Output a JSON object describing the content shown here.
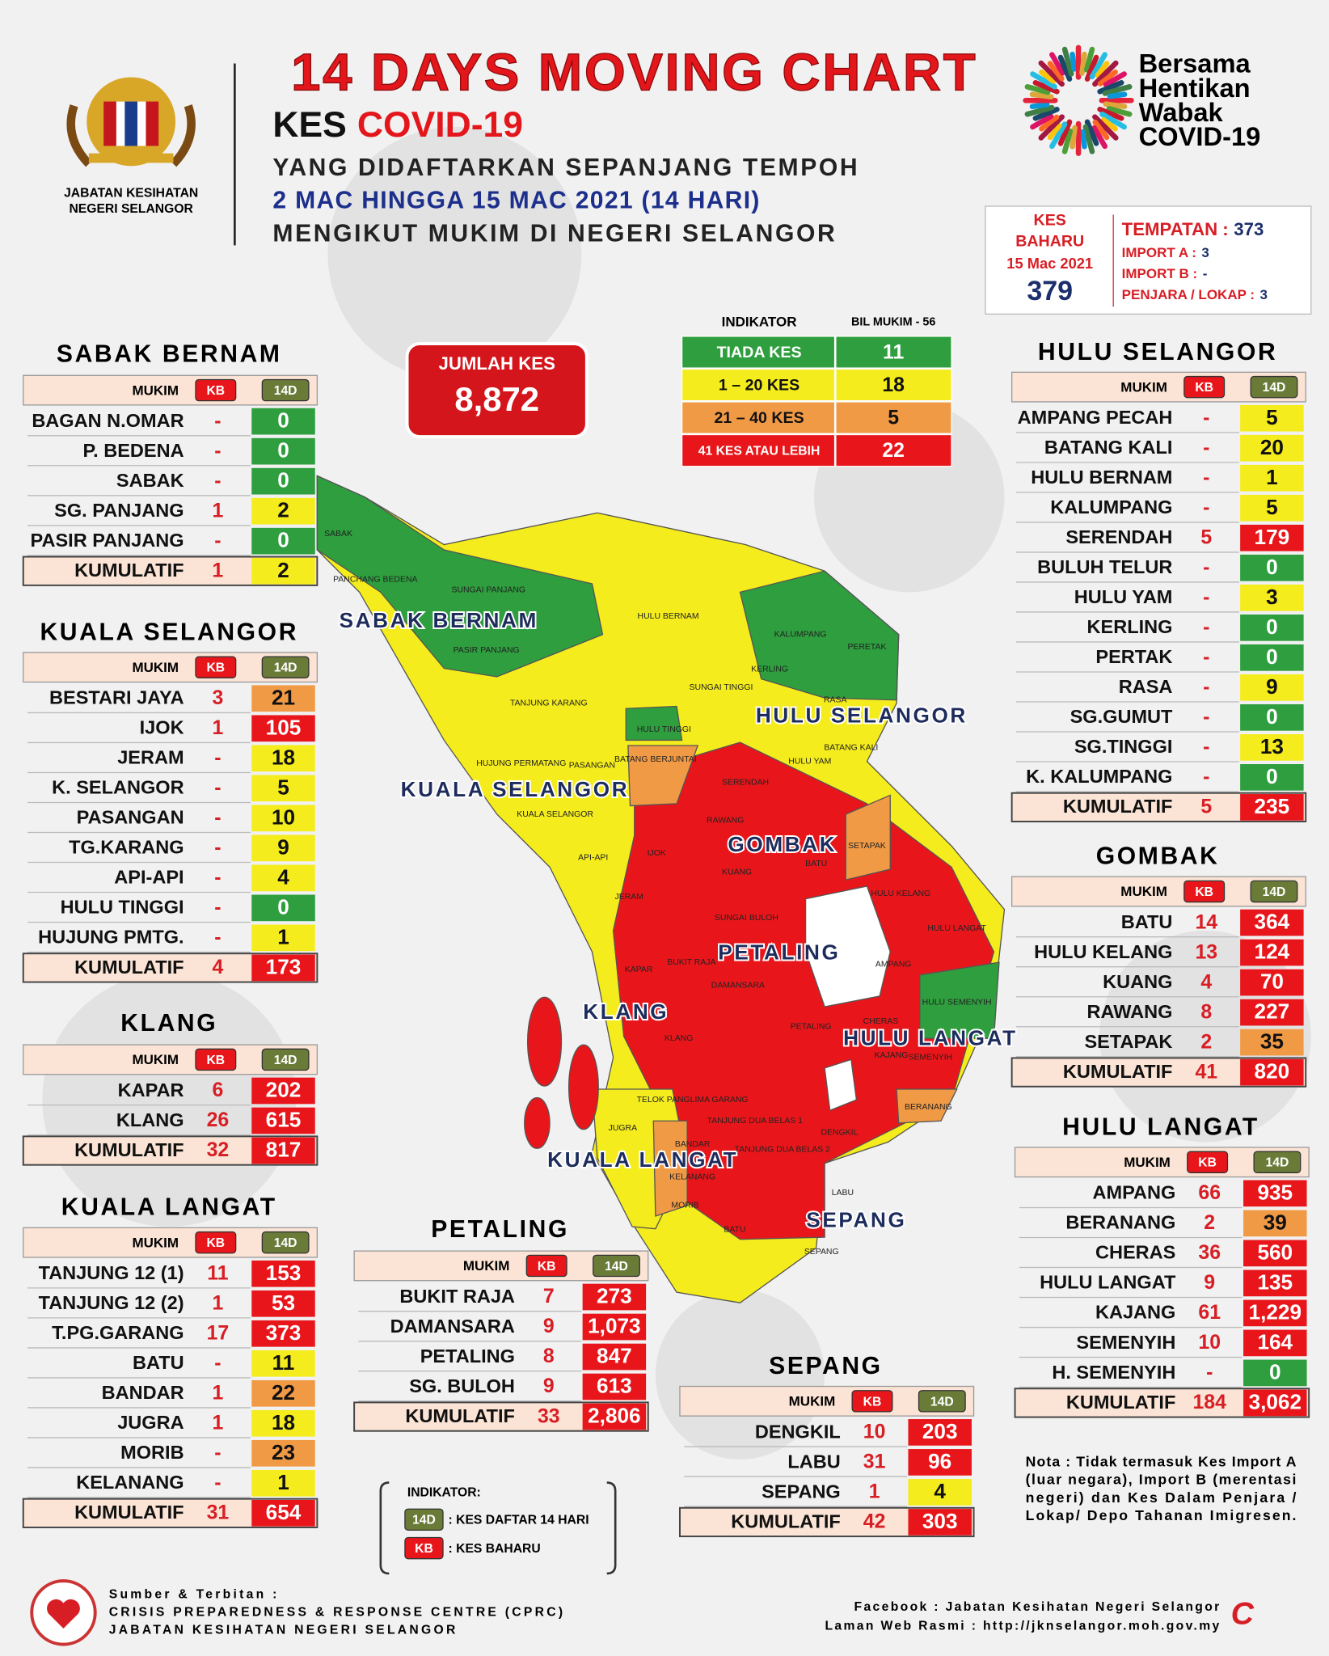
{
  "header": {
    "agency": "JABATAN KESIHATAN NEGERI SELANGOR",
    "agency_lines": [
      "JABATAN KESIHATAN",
      "NEGERI SELANGOR"
    ],
    "title": "14 DAYS MOVING CHART",
    "subtitle_prefix": "KES",
    "subtitle_highlight": "COVID-19",
    "lines": [
      "YANG DIDAFTARKAN SEPANJANG TEMPOH",
      "2 MAC HINGGA 15 MAC 2021 (14 HARI)",
      "MENGIKUT MUKIM DI NEGERI SELANGOR"
    ],
    "campaign": [
      "Bersama",
      "Hentikan",
      "Wabak",
      "COVID-19"
    ]
  },
  "new_cases": {
    "label_lines": [
      "KES",
      "BAHARU"
    ],
    "date": "15 Mac 2021",
    "total": 379,
    "items": [
      {
        "label": "TEMPATAN :",
        "value": 373
      },
      {
        "label": "IMPORT A :",
        "value": 3
      },
      {
        "label": "IMPORT B :",
        "value": "-"
      },
      {
        "label": "PENJARA / LOKAP :",
        "value": 3
      }
    ]
  },
  "total_cases": {
    "label": "JUMLAH KES",
    "value": "8,872"
  },
  "indicator": {
    "headers": [
      "INDIKATOR",
      "BIL MUKIM - 56"
    ],
    "rows": [
      {
        "label": "TIADA KES",
        "count": 11,
        "color": "#2e9e3e"
      },
      {
        "label": "1 – 20 KES",
        "count": 18,
        "color": "#f4ec1c"
      },
      {
        "label": "21 – 40 KES",
        "count": 5,
        "color": "#f19a46"
      },
      {
        "label": "41 KES ATAU LEBIH",
        "count": 22,
        "color": "#e8161b"
      }
    ]
  },
  "table_headers": [
    "MUKIM",
    "KB",
    "14D"
  ],
  "districts": [
    {
      "name": "SABAK BERNAM",
      "rows": [
        [
          "BAGAN N.OMAR",
          "-",
          0
        ],
        [
          "P. BEDENA",
          "-",
          0
        ],
        [
          "SABAK",
          "-",
          0
        ],
        [
          "SG. PANJANG",
          1,
          2
        ],
        [
          "PASIR PANJANG",
          "-",
          0
        ]
      ],
      "total": [
        "KUMULATIF",
        1,
        2
      ]
    },
    {
      "name": "KUALA SELANGOR",
      "rows": [
        [
          "BESTARI JAYA",
          3,
          21
        ],
        [
          "IJOK",
          1,
          105
        ],
        [
          "JERAM",
          "-",
          18
        ],
        [
          "K. SELANGOR",
          "-",
          5
        ],
        [
          "PASANGAN",
          "-",
          10
        ],
        [
          "TG.KARANG",
          "-",
          9
        ],
        [
          "API-API",
          "-",
          4
        ],
        [
          "HULU TINGGI",
          "-",
          0
        ],
        [
          "HUJUNG PMTG.",
          "-",
          1
        ]
      ],
      "total": [
        "KUMULATIF",
        4,
        173
      ]
    },
    {
      "name": "KLANG",
      "rows": [
        [
          "KAPAR",
          6,
          202
        ],
        [
          "KLANG",
          26,
          615
        ]
      ],
      "total": [
        "KUMULATIF",
        32,
        817
      ]
    },
    {
      "name": "KUALA LANGAT",
      "rows": [
        [
          "TANJUNG 12 (1)",
          11,
          153
        ],
        [
          "TANJUNG 12 (2)",
          1,
          53
        ],
        [
          "T.PG.GARANG",
          17,
          373
        ],
        [
          "BATU",
          "-",
          11
        ],
        [
          "BANDAR",
          1,
          22
        ],
        [
          "JUGRA",
          1,
          18
        ],
        [
          "MORIB",
          "-",
          23
        ],
        [
          "KELANANG",
          "-",
          1
        ]
      ],
      "total": [
        "KUMULATIF",
        31,
        654
      ]
    },
    {
      "name": "PETALING",
      "rows": [
        [
          "BUKIT RAJA",
          7,
          273
        ],
        [
          "DAMANSARA",
          9,
          "1,073"
        ],
        [
          "PETALING",
          8,
          847
        ],
        [
          "SG. BULOH",
          9,
          613
        ]
      ],
      "total": [
        "KUMULATIF",
        33,
        "2,806"
      ]
    },
    {
      "name": "SEPANG",
      "rows": [
        [
          "DENGKIL",
          10,
          203
        ],
        [
          "LABU",
          31,
          96
        ],
        [
          "SEPANG",
          1,
          4
        ]
      ],
      "total": [
        "KUMULATIF",
        42,
        303
      ]
    },
    {
      "name": "HULU SELANGOR",
      "rows": [
        [
          "AMPANG PECAH",
          "-",
          5
        ],
        [
          "BATANG KALI",
          "-",
          20
        ],
        [
          "HULU BERNAM",
          "-",
          1
        ],
        [
          "KALUMPANG",
          "-",
          5
        ],
        [
          "SERENDAH",
          5,
          179
        ],
        [
          "BULUH TELUR",
          "-",
          0
        ],
        [
          "HULU YAM",
          "-",
          3
        ],
        [
          "KERLING",
          "-",
          0
        ],
        [
          "PERTAK",
          "-",
          0
        ],
        [
          "RASA",
          "-",
          9
        ],
        [
          "SG.GUMUT",
          "-",
          0
        ],
        [
          "SG.TINGGI",
          "-",
          13
        ],
        [
          "K. KALUMPANG",
          "-",
          0
        ]
      ],
      "total": [
        "KUMULATIF",
        5,
        235
      ]
    },
    {
      "name": "GOMBAK",
      "rows": [
        [
          "BATU",
          14,
          364
        ],
        [
          "HULU KELANG",
          13,
          124
        ],
        [
          "KUANG",
          4,
          70
        ],
        [
          "RAWANG",
          8,
          227
        ],
        [
          "SETAPAK",
          2,
          35
        ]
      ],
      "total": [
        "KUMULATIF",
        41,
        820
      ]
    },
    {
      "name": "HULU LANGAT",
      "rows": [
        [
          "AMPANG",
          66,
          935
        ],
        [
          "BERANANG",
          2,
          39
        ],
        [
          "CHERAS",
          36,
          560
        ],
        [
          "HULU LANGAT",
          9,
          135
        ],
        [
          "KAJANG",
          61,
          "1,229"
        ],
        [
          "SEMENYIH",
          10,
          164
        ],
        [
          "H. SEMENYIH",
          "-",
          0
        ]
      ],
      "total": [
        "KUMULATIF",
        184,
        "3,062"
      ]
    }
  ],
  "map": {
    "district_labels": [
      "SABAK BERNAM",
      "HULU SELANGOR",
      "KUALA SELANGOR",
      "GOMBAK",
      "PETALING",
      "KLANG",
      "HULU LANGAT",
      "KUALA LANGAT",
      "SEPANG"
    ],
    "mukim_labels": [
      "SABAK",
      "PANCHANG BEDENA",
      "SUNGAI PANJANG",
      "PASIR PANJANG",
      "HULU BERNAM",
      "KALUMPANG",
      "PERETAK",
      "KERLING",
      "SUNGAI TINGGI",
      "TANJUNG KARANG",
      "HULU TINGGI",
      "RASA",
      "BATANG KALI",
      "HULU YAM",
      "SERENDAH",
      "BATANG BERJUNTAI",
      "PASANGAN",
      "HUJUNG PERMATANG",
      "KUALA SELANGOR",
      "RAWANG",
      "IJOK",
      "API-API",
      "KUANG",
      "BATU",
      "SETAPAK",
      "JERAM",
      "HULU KELANG",
      "SUNGAI BULOH",
      "HULU LANGAT",
      "KAPAR",
      "BUKIT RAJA",
      "DAMANSARA",
      "AMPANG",
      "HULU SEMENYIH",
      "KLANG",
      "PETALING",
      "CHERAS",
      "KAJANG",
      "SEMENYIH",
      "TELOK PANGLIMA GARANG",
      "TANJUNG DUA BELAS 1",
      "TANJUNG DUA BELAS 2",
      "JUGRA",
      "BANDAR",
      "DENGKIL",
      "BERANANG",
      "KELANANG",
      "LABU",
      "MORIB",
      "BATU",
      "SEPANG"
    ]
  },
  "legend": {
    "title": "INDIKATOR:",
    "items": [
      {
        "key": "14D",
        "label": ": KES DAFTAR 14 HARI"
      },
      {
        "key": "KB",
        "label": ": KES BAHARU"
      }
    ]
  },
  "note": [
    "Nota : Tidak termasuk Kes Import A",
    "(luar negara), Import B (merentasi",
    "negeri) dan Kes Dalam Penjara /",
    "Lokap/ Depo Tahanan Imigresen."
  ],
  "footer": {
    "source": [
      "Sumber & Terbitan :",
      "CRISIS PREPAREDNESS & RESPONSE CENTRE (CPRC)",
      "JABATAN KESIHATAN NEGERI SELANGOR"
    ],
    "links": [
      "Facebook : Jabatan Kesihatan Negeri Selangor",
      "Laman Web Rasmi : http://jknselangor.moh.gov.my"
    ]
  }
}
